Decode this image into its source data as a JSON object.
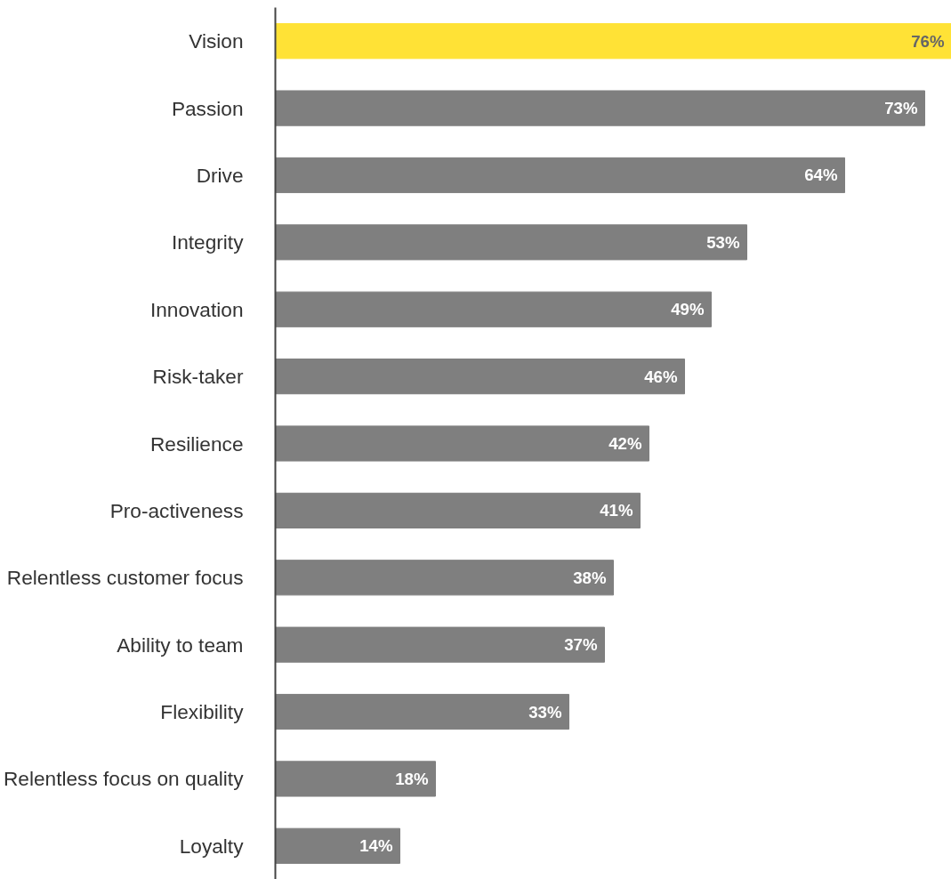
{
  "chart_data": {
    "type": "bar",
    "orientation": "horizontal",
    "categories": [
      "Vision",
      "Passion",
      "Drive",
      "Integrity",
      "Innovation",
      "Risk-taker",
      "Resilience",
      "Pro-activeness",
      "Relentless customer focus",
      "Ability to team",
      "Flexibility",
      "Relentless focus on quality",
      "Loyalty"
    ],
    "values": [
      76,
      73,
      64,
      53,
      49,
      46,
      42,
      41,
      38,
      37,
      33,
      18,
      14
    ],
    "value_labels": [
      "76%",
      "73%",
      "64%",
      "53%",
      "49%",
      "46%",
      "42%",
      "41%",
      "38%",
      "37%",
      "33%",
      "18%",
      "14%"
    ],
    "colors": [
      "#ffe236",
      "#7f7f7f",
      "#7f7f7f",
      "#7f7f7f",
      "#7f7f7f",
      "#7f7f7f",
      "#7f7f7f",
      "#7f7f7f",
      "#7f7f7f",
      "#7f7f7f",
      "#7f7f7f",
      "#7f7f7f",
      "#7f7f7f"
    ],
    "grid": false
  }
}
